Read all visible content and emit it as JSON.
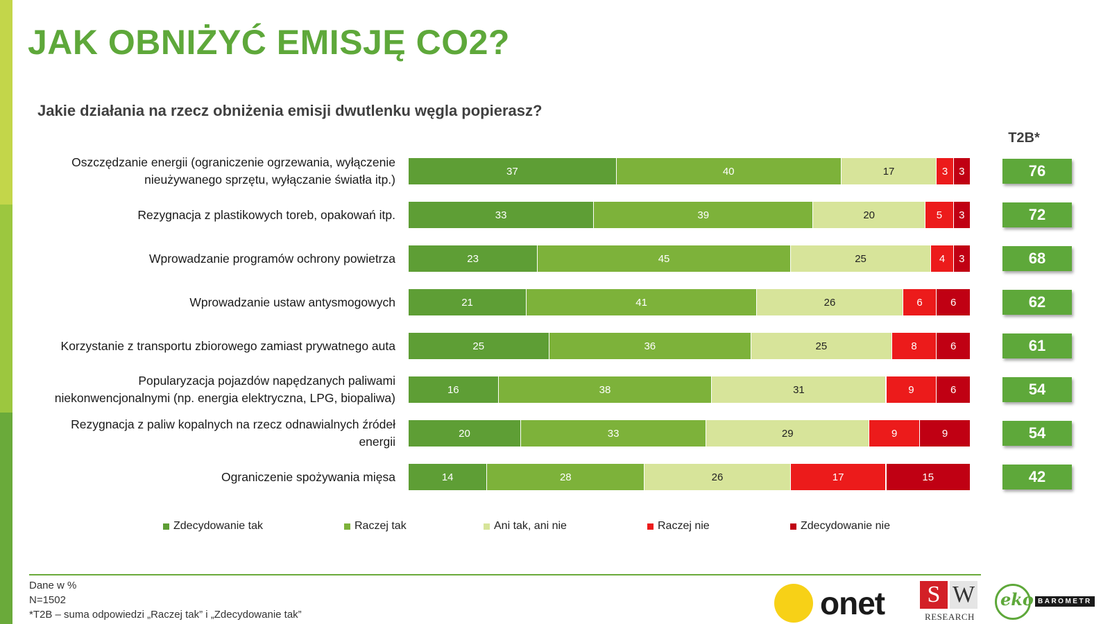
{
  "title": "JAK OBNIŻYĆ EMISJĘ CO2?",
  "question": "Jakie działania na rzecz obniżenia emisji dwutlenku węgla popierasz?",
  "t2b_header": "T2B*",
  "colors": {
    "accent": "#5ea83a",
    "zdecydowanie_tak": "#5e9e35",
    "raczej_tak": "#7db23a",
    "ani_tak_ani_nie": "#d7e49a",
    "raczej_nie": "#ec1b1b",
    "zdecydowanie_nie": "#c00013"
  },
  "chart_data": {
    "type": "bar",
    "stacked": true,
    "orientation": "horizontal",
    "unit": "%",
    "categories": [
      "Oszczędzanie energii (ograniczenie ogrzewania, wyłączenie nieużywanego sprzętu, wyłączanie światła itp.)",
      "Rezygnacja z plastikowych toreb, opakowań itp.",
      "Wprowadzanie programów ochrony powietrza",
      "Wprowadzanie ustaw antysmogowych",
      "Korzystanie z transportu zbiorowego zamiast prywatnego auta",
      "Popularyzacja pojazdów napędzanych paliwami niekonwencjonalnymi (np. energia elektryczna, LPG, biopaliwa)",
      "Rezygnacja z paliw kopalnych na rzecz odnawialnych źródeł energii",
      "Ograniczenie spożywania mięsa"
    ],
    "category_lines": [
      [
        "Oszczędzanie energii (ograniczenie ogrzewania, wyłączenie",
        "nieużywanego sprzętu, wyłączanie światła itp.)"
      ],
      [
        "Rezygnacja z plastikowych toreb, opakowań itp."
      ],
      [
        "Wprowadzanie programów ochrony powietrza"
      ],
      [
        "Wprowadzanie ustaw antysmogowych"
      ],
      [
        "Korzystanie z transportu zbiorowego zamiast prywatnego auta"
      ],
      [
        "Popularyzacja pojazdów napędzanych paliwami",
        "niekonwencjonalnymi (np. energia elektryczna, LPG, biopaliwa)"
      ],
      [
        "Rezygnacja z paliw kopalnych na rzecz odnawialnych źródeł",
        "energii"
      ],
      [
        "Ograniczenie spożywania mięsa"
      ]
    ],
    "series": [
      {
        "name": "Zdecydowanie tak",
        "color": "#5e9e35",
        "values": [
          37,
          33,
          23,
          21,
          25,
          16,
          20,
          14
        ]
      },
      {
        "name": "Raczej tak",
        "color": "#7db23a",
        "values": [
          40,
          39,
          45,
          41,
          36,
          38,
          33,
          28
        ]
      },
      {
        "name": "Ani tak, ani nie",
        "color": "#d7e49a",
        "values": [
          17,
          20,
          25,
          26,
          25,
          31,
          29,
          26
        ]
      },
      {
        "name": "Raczej nie",
        "color": "#ec1b1b",
        "values": [
          3,
          5,
          4,
          6,
          8,
          9,
          9,
          17
        ]
      },
      {
        "name": "Zdecydowanie nie",
        "color": "#c00013",
        "values": [
          3,
          3,
          3,
          6,
          6,
          6,
          9,
          15
        ]
      }
    ],
    "t2b": [
      76,
      72,
      68,
      62,
      61,
      54,
      54,
      42
    ],
    "legend_position": "bottom"
  },
  "footer": {
    "note1": "Dane w %",
    "note2": "N=1502",
    "note3": "*T2B – suma odpowiedzi „Raczej tak” i „Zdecydowanie tak”"
  },
  "logos": {
    "onet": "onet",
    "sw_s": "S",
    "sw_w": "W",
    "sw_research": "RESEARCH",
    "eko": "eko",
    "barometr": "BAROMETR"
  }
}
